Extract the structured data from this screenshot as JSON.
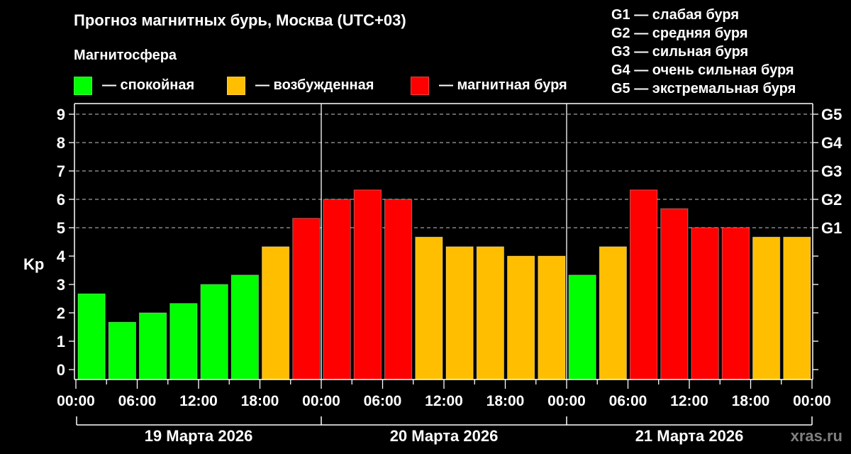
{
  "header": {
    "title": "Прогноз магнитных бурь, Москва (UTC+03)",
    "subtitle": "Магнитосфера"
  },
  "legend": {
    "items": [
      {
        "label": "— спокойная",
        "color": "#00ff00"
      },
      {
        "label": "— возбужденная",
        "color": "#ffbf00"
      },
      {
        "label": "— магнитная буря",
        "color": "#ff0000"
      }
    ]
  },
  "g_scale": {
    "items": [
      "G1 — слабая буря",
      "G2 — средняя буря",
      "G3 — сильная буря",
      "G4 — очень сильная буря",
      "G5 — экстремальная буря"
    ]
  },
  "watermark": {
    "text": "xras.ru",
    "color": "#808080"
  },
  "colors": {
    "quiet": "#00ff00",
    "active": "#ffbf00",
    "storm": "#ff0000",
    "grid": "#a0a0a0",
    "axis": "#ffffff",
    "background": "#000000"
  },
  "chart_data": {
    "type": "bar",
    "title": "Прогноз магнитных бурь, Москва (UTC+03)",
    "xlabel": "",
    "ylabel": "Kp",
    "ylim": [
      0,
      9
    ],
    "yticks": [
      0,
      1,
      2,
      3,
      4,
      5,
      6,
      7,
      8,
      9
    ],
    "right_axis_labels": [
      {
        "y": 5,
        "label": "G1"
      },
      {
        "y": 6,
        "label": "G2"
      },
      {
        "y": 7,
        "label": "G3"
      },
      {
        "y": 8,
        "label": "G4"
      },
      {
        "y": 9,
        "label": "G5"
      }
    ],
    "grid": {
      "horizontal_dashed_at": [
        5,
        6,
        7,
        8,
        9
      ]
    },
    "x_tick_labels": [
      "00:00",
      "06:00",
      "12:00",
      "18:00",
      "00:00",
      "06:00",
      "12:00",
      "18:00",
      "00:00",
      "06:00",
      "12:00",
      "18:00",
      "00:00"
    ],
    "days": [
      "19 Марта 2026",
      "20 Марта 2026",
      "21 Марта 2026"
    ],
    "categories": [
      "19 00:00",
      "19 03:00",
      "19 06:00",
      "19 09:00",
      "19 12:00",
      "19 15:00",
      "19 18:00",
      "19 21:00",
      "20 00:00",
      "20 03:00",
      "20 06:00",
      "20 09:00",
      "20 12:00",
      "20 15:00",
      "20 18:00",
      "20 21:00",
      "21 00:00",
      "21 03:00",
      "21 06:00",
      "21 09:00",
      "21 12:00",
      "21 15:00",
      "21 18:00",
      "21 21:00"
    ],
    "values": [
      2.67,
      1.67,
      2.0,
      2.33,
      3.0,
      3.33,
      4.33,
      5.33,
      6.0,
      6.33,
      6.0,
      4.67,
      4.33,
      4.33,
      4.0,
      4.0,
      3.33,
      4.33,
      6.33,
      5.67,
      5.0,
      5.0,
      4.67,
      4.67
    ],
    "levels": [
      "quiet",
      "quiet",
      "quiet",
      "quiet",
      "quiet",
      "quiet",
      "active",
      "storm",
      "storm",
      "storm",
      "storm",
      "active",
      "active",
      "active",
      "active",
      "active",
      "quiet",
      "active",
      "storm",
      "storm",
      "storm",
      "storm",
      "active",
      "active"
    ],
    "legend_position": "top"
  }
}
